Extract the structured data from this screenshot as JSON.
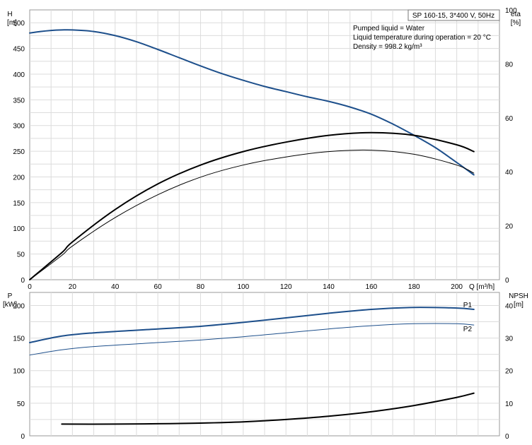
{
  "chart_data": [
    {
      "type": "line",
      "title": "SP 160-15, 3*400 V, 50Hz",
      "annotations": [
        "Pumped liquid = Water",
        "Liquid temperature during operation = 20 °C",
        "Density = 998.2 kg/m³"
      ],
      "x_label": "Q [m³/h]",
      "xlim": [
        0,
        220
      ],
      "x_ticks": [
        0,
        20,
        40,
        60,
        80,
        100,
        120,
        140,
        160,
        180,
        200
      ],
      "y_left_label": [
        "H",
        "[m]"
      ],
      "ylim_left": [
        0,
        525
      ],
      "y_left_ticks": [
        0,
        50,
        100,
        150,
        200,
        250,
        300,
        350,
        400,
        450,
        500
      ],
      "y_right_label": [
        "eta",
        "[%]"
      ],
      "ylim_right": [
        0,
        100
      ],
      "y_right_ticks": [
        0,
        20,
        40,
        60,
        80,
        100
      ],
      "grid": true,
      "series": [
        {
          "axis": "left",
          "color": "#1d4f8b",
          "x": [
            0,
            5,
            10,
            15,
            20,
            30,
            40,
            50,
            60,
            70,
            80,
            90,
            100,
            110,
            120,
            130,
            140,
            150,
            160,
            170,
            180,
            190,
            200,
            208
          ],
          "y": [
            480,
            483,
            485,
            486,
            486,
            483,
            475,
            463,
            448,
            432,
            416,
            401,
            388,
            376,
            366,
            356,
            347,
            336,
            322,
            303,
            281,
            257,
            228,
            204
          ]
        },
        {
          "axis": "right",
          "color": "#000000",
          "x": [
            0,
            15,
            20,
            40,
            60,
            80,
            100,
            120,
            140,
            160,
            180,
            200,
            208
          ],
          "y": [
            0,
            9,
            12.5,
            23,
            31.5,
            38,
            42.5,
            45.5,
            47.5,
            48,
            46.5,
            42.5,
            39.5
          ]
        },
        {
          "axis": "right",
          "color": "#000000",
          "x": [
            0,
            15,
            20,
            40,
            60,
            80,
            100,
            120,
            140,
            160,
            180,
            200,
            208
          ],
          "y": [
            0,
            10,
            14,
            26,
            35.5,
            42.5,
            47.5,
            51,
            53.5,
            54.5,
            53.5,
            50,
            47.5
          ]
        }
      ]
    },
    {
      "type": "line",
      "x_label": "",
      "xlim": [
        0,
        220
      ],
      "y_left_label": [
        "P",
        "[kW]"
      ],
      "ylim_left": [
        0,
        220
      ],
      "y_left_ticks": [
        0,
        50,
        100,
        150,
        200
      ],
      "y_right_label": [
        "NPSH",
        "[m]"
      ],
      "ylim_right": [
        0,
        44
      ],
      "y_right_ticks": [
        0,
        10,
        20,
        30,
        40
      ],
      "grid": true,
      "series": [
        {
          "name": "P1",
          "axis": "left",
          "color": "#1d4f8b",
          "x": [
            0,
            15,
            30,
            60,
            80,
            100,
            120,
            140,
            160,
            180,
            200,
            208
          ],
          "y": [
            143,
            153,
            158,
            164,
            168,
            174,
            181,
            188,
            194,
            197,
            196,
            194
          ]
        },
        {
          "name": "P2",
          "axis": "left",
          "color": "#1d4f8b",
          "x": [
            0,
            15,
            30,
            60,
            80,
            100,
            120,
            140,
            160,
            180,
            200,
            208
          ],
          "y": [
            124,
            132,
            137,
            143,
            147,
            152,
            158,
            164,
            169,
            172,
            172,
            170
          ]
        },
        {
          "axis": "right",
          "color": "#000000",
          "x": [
            15,
            40,
            60,
            80,
            100,
            120,
            140,
            160,
            180,
            200,
            208
          ],
          "y": [
            3.6,
            3.6,
            3.7,
            3.9,
            4.3,
            5.0,
            6.0,
            7.4,
            9.3,
            11.8,
            13.1
          ]
        }
      ]
    }
  ]
}
